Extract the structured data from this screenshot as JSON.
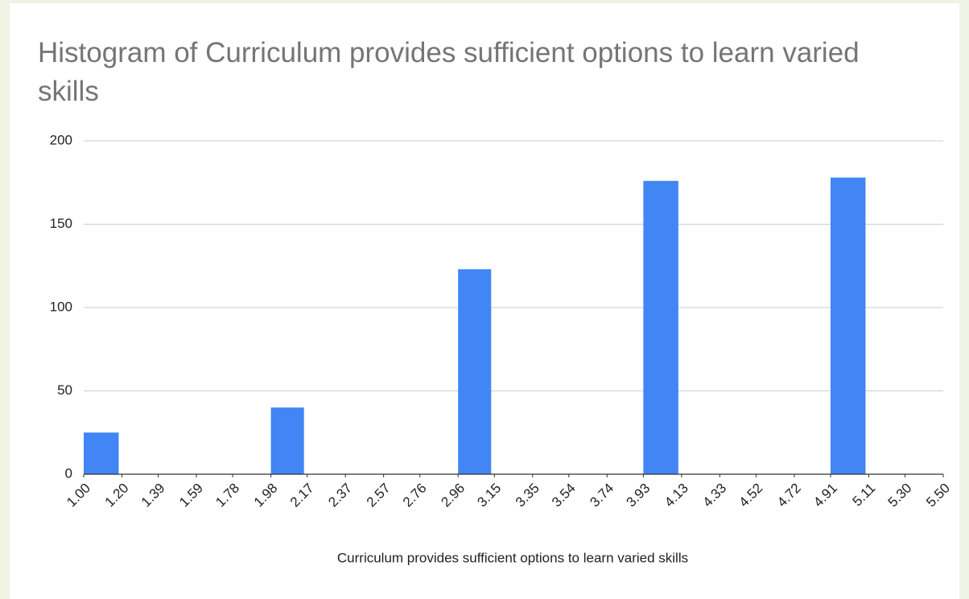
{
  "chart_data": {
    "type": "histogram",
    "title": "Histogram of Curriculum provides sufficient options to learn varied skills",
    "x_label": "Curriculum provides sufficient options to learn varied skills",
    "bins": [
      1.0,
      1.2,
      1.39,
      1.59,
      1.78,
      1.98,
      2.17,
      2.37,
      2.57,
      2.76,
      2.96,
      3.15,
      3.35,
      3.54,
      3.74,
      3.93,
      4.13,
      4.33,
      4.52,
      4.72,
      4.91,
      5.11,
      5.3,
      5.5
    ],
    "values": [
      25,
      0,
      0,
      0,
      0,
      40,
      0,
      0,
      0,
      0,
      123,
      0,
      0,
      0,
      0,
      176,
      0,
      0,
      0,
      0,
      178,
      0,
      0
    ],
    "color": "#4285f4",
    "xlim": [
      1.0,
      5.5
    ],
    "xticks": [
      {
        "value": 1.0,
        "label": "1.00"
      },
      {
        "value": 1.2,
        "label": "1.20"
      },
      {
        "value": 1.39,
        "label": "1.39"
      },
      {
        "value": 1.59,
        "label": "1.59"
      },
      {
        "value": 1.78,
        "label": "1.78"
      },
      {
        "value": 1.98,
        "label": "1.98"
      },
      {
        "value": 2.17,
        "label": "2.17"
      },
      {
        "value": 2.37,
        "label": "2.37"
      },
      {
        "value": 2.57,
        "label": "2.57"
      },
      {
        "value": 2.76,
        "label": "2.76"
      },
      {
        "value": 2.96,
        "label": "2.96"
      },
      {
        "value": 3.15,
        "label": "3.15"
      },
      {
        "value": 3.35,
        "label": "3.35"
      },
      {
        "value": 3.54,
        "label": "3.54"
      },
      {
        "value": 3.74,
        "label": "3.74"
      },
      {
        "value": 3.93,
        "label": "3.93"
      },
      {
        "value": 4.13,
        "label": "4.13"
      },
      {
        "value": 4.33,
        "label": "4.33"
      },
      {
        "value": 4.52,
        "label": "4.52"
      },
      {
        "value": 4.72,
        "label": "4.72"
      },
      {
        "value": 4.91,
        "label": "4.91"
      },
      {
        "value": 5.11,
        "label": "5.11"
      },
      {
        "value": 5.3,
        "label": "5.30"
      },
      {
        "value": 5.5,
        "label": "5.50"
      }
    ],
    "ylim": [
      0,
      200
    ],
    "yticks": [
      0,
      50,
      100,
      150,
      200
    ],
    "grid": true
  }
}
